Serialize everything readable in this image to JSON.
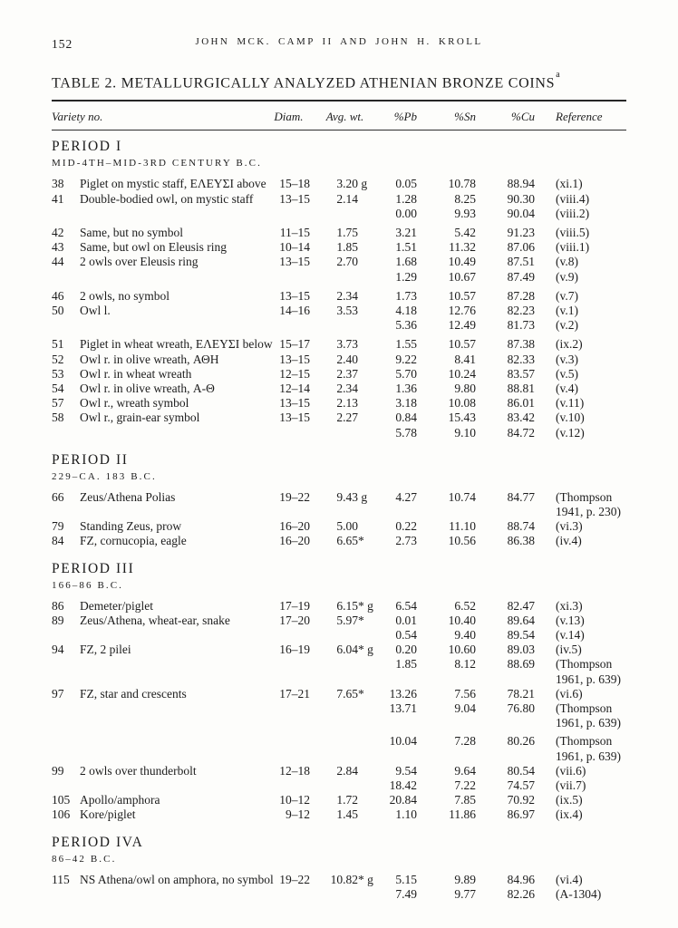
{
  "page": {
    "number": "152",
    "running_head": "JOHN MCK. CAMP II AND JOHN H. KROLL"
  },
  "table": {
    "title": "TABLE 2. METALLURGICALLY ANALYZED ATHENIAN BRONZE COINS",
    "footnote_marker": "a",
    "columns": {
      "variety": "Variety no.",
      "diam": "Diam.",
      "wt": "Avg. wt.",
      "pb": "%Pb",
      "sn": "%Sn",
      "cu": "%Cu",
      "ref": "Reference"
    },
    "sections": [
      {
        "period": "PERIOD I",
        "dates": "MID-4TH–MID-3RD CENTURY B.C.",
        "rows": [
          {
            "no": "38",
            "desc": "Piglet on mystic staff, ΕΛΕΥΣΙ above",
            "diam": "15–18",
            "wt": "3.20",
            "wts": " g",
            "lines": [
              {
                "pb": "0.05",
                "sn": "10.78",
                "cu": "88.94",
                "ref": "(xi.1)"
              }
            ]
          },
          {
            "no": "41",
            "desc": "Double-bodied owl, on mystic staff",
            "diam": "13–15",
            "wt": "2.14",
            "wts": "",
            "lines": [
              {
                "pb": "1.28",
                "sn": "8.25",
                "cu": "90.30",
                "ref": "(viii.4)"
              },
              {
                "pb": "0.00",
                "sn": "9.93",
                "cu": "90.04",
                "ref": "(viii.2)"
              }
            ]
          },
          {
            "no": "42",
            "gap": true,
            "desc": "Same, but no symbol",
            "diam": "11–15",
            "wt": "1.75",
            "wts": "",
            "lines": [
              {
                "pb": "3.21",
                "sn": "5.42",
                "cu": "91.23",
                "ref": "(viii.5)"
              }
            ]
          },
          {
            "no": "43",
            "desc": "Same, but owl on Eleusis ring",
            "diam": "10–14",
            "wt": "1.85",
            "wts": "",
            "lines": [
              {
                "pb": "1.51",
                "sn": "11.32",
                "cu": "87.06",
                "ref": "(viii.1)"
              }
            ]
          },
          {
            "no": "44",
            "desc": "2 owls over Eleusis ring",
            "diam": "13–15",
            "wt": "2.70",
            "wts": "",
            "lines": [
              {
                "pb": "1.68",
                "sn": "10.49",
                "cu": "87.51",
                "ref": "(v.8)"
              },
              {
                "pb": "1.29",
                "sn": "10.67",
                "cu": "87.49",
                "ref": "(v.9)"
              }
            ]
          },
          {
            "no": "46",
            "gap": true,
            "desc": "2 owls, no symbol",
            "diam": "13–15",
            "wt": "2.34",
            "wts": "",
            "lines": [
              {
                "pb": "1.73",
                "sn": "10.57",
                "cu": "87.28",
                "ref": "(v.7)"
              }
            ]
          },
          {
            "no": "50",
            "desc": "Owl l.",
            "diam": "14–16",
            "wt": "3.53",
            "wts": "",
            "lines": [
              {
                "pb": "4.18",
                "sn": "12.76",
                "cu": "82.23",
                "ref": "(v.1)"
              },
              {
                "pb": "5.36",
                "sn": "12.49",
                "cu": "81.73",
                "ref": "(v.2)"
              }
            ]
          },
          {
            "no": "51",
            "gap": true,
            "desc": "Piglet in wheat wreath, ΕΛΕΥΣΙ below",
            "diam": "15–17",
            "wt": "3.73",
            "wts": "",
            "lines": [
              {
                "pb": "1.55",
                "sn": "10.57",
                "cu": "87.38",
                "ref": "(ix.2)"
              }
            ]
          },
          {
            "no": "52",
            "desc": "Owl r. in olive wreath, ΑΘΗ",
            "diam": "13–15",
            "wt": "2.40",
            "wts": "",
            "lines": [
              {
                "pb": "9.22",
                "sn": "8.41",
                "cu": "82.33",
                "ref": "(v.3)"
              }
            ]
          },
          {
            "no": "53",
            "desc": "Owl r. in wheat wreath",
            "diam": "12–15",
            "wt": "2.37",
            "wts": "",
            "lines": [
              {
                "pb": "5.70",
                "sn": "10.24",
                "cu": "83.57",
                "ref": "(v.5)"
              }
            ]
          },
          {
            "no": "54",
            "desc": "Owl r. in olive wreath, Α-Θ",
            "diam": "12–14",
            "wt": "2.34",
            "wts": "",
            "lines": [
              {
                "pb": "1.36",
                "sn": "9.80",
                "cu": "88.81",
                "ref": "(v.4)"
              }
            ]
          },
          {
            "no": "57",
            "desc": "Owl r., wreath symbol",
            "diam": "13–15",
            "wt": "2.13",
            "wts": "",
            "lines": [
              {
                "pb": "3.18",
                "sn": "10.08",
                "cu": "86.01",
                "ref": "(v.11)"
              }
            ]
          },
          {
            "no": "58",
            "desc": "Owl r., grain-ear symbol",
            "diam": "13–15",
            "wt": "2.27",
            "wts": "",
            "lines": [
              {
                "pb": "0.84",
                "sn": "15.43",
                "cu": "83.42",
                "ref": "(v.10)"
              },
              {
                "pb": "5.78",
                "sn": "9.10",
                "cu": "84.72",
                "ref": "(v.12)"
              }
            ]
          }
        ]
      },
      {
        "period": "PERIOD II",
        "dates": "229–CA. 183 B.C.",
        "rows": [
          {
            "no": "66",
            "desc": "Zeus/Athena Polias",
            "diam": "19–22",
            "wt": "9.43",
            "wts": " g",
            "lines": [
              {
                "pb": "4.27",
                "sn": "10.74",
                "cu": "84.77",
                "ref": "(Thompson 1941, p. 230)"
              }
            ]
          },
          {
            "no": "79",
            "desc": "Standing Zeus, prow",
            "diam": "16–20",
            "wt": "5.00",
            "wts": "",
            "lines": [
              {
                "pb": "0.22",
                "sn": "11.10",
                "cu": "88.74",
                "ref": "(vi.3)"
              }
            ]
          },
          {
            "no": "84",
            "desc": "FZ, cornucopia, eagle",
            "diam": "16–20",
            "wt": "6.65",
            "wts": "*",
            "lines": [
              {
                "pb": "2.73",
                "sn": "10.56",
                "cu": "86.38",
                "ref": "(iv.4)"
              }
            ]
          }
        ]
      },
      {
        "period": "PERIOD III",
        "dates": "166–86 B.C.",
        "rows": [
          {
            "no": "86",
            "desc": "Demeter/piglet",
            "diam": "17–19",
            "wt": "6.15",
            "wts": "* g",
            "lines": [
              {
                "pb": "6.54",
                "sn": "6.52",
                "cu": "82.47",
                "ref": "(xi.3)"
              }
            ]
          },
          {
            "no": "89",
            "desc": "Zeus/Athena, wheat-ear, snake",
            "diam": "17–20",
            "wt": "5.97",
            "wts": "*",
            "lines": [
              {
                "pb": "0.01",
                "sn": "10.40",
                "cu": "89.64",
                "ref": "(v.13)"
              },
              {
                "pb": "0.54",
                "sn": "9.40",
                "cu": "89.54",
                "ref": "(v.14)"
              }
            ]
          },
          {
            "no": "94",
            "desc": "FZ, 2 pilei",
            "diam": "16–19",
            "wt": "6.04",
            "wts": "* g",
            "lines": [
              {
                "pb": "0.20",
                "sn": "10.60",
                "cu": "89.03",
                "ref": "(iv.5)"
              },
              {
                "pb": "1.85",
                "sn": "8.12",
                "cu": "88.69",
                "ref": "(Thompson 1961, p. 639)"
              }
            ]
          },
          {
            "no": "97",
            "desc": "FZ, star and crescents",
            "diam": "17–21",
            "wt": "7.65",
            "wts": "*",
            "lines": [
              {
                "pb": "13.26",
                "sn": "7.56",
                "cu": "78.21",
                "ref": "(vi.6)"
              },
              {
                "pb": "13.71",
                "sn": "9.04",
                "cu": "76.80",
                "ref": "(Thompson 1961, p. 639)"
              },
              {
                "gap": true,
                "pb": "10.04",
                "sn": "7.28",
                "cu": "80.26",
                "ref": "(Thompson 1961, p. 639)"
              }
            ]
          },
          {
            "no": "99",
            "desc": "2 owls over thunderbolt",
            "diam": "12–18",
            "wt": "2.84",
            "wts": "",
            "lines": [
              {
                "pb": "9.54",
                "sn": "9.64",
                "cu": "80.54",
                "ref": "(vii.6)"
              },
              {
                "pb": "18.42",
                "sn": "7.22",
                "cu": "74.57",
                "ref": "(vii.7)"
              }
            ]
          },
          {
            "no": "105",
            "desc": "Apollo/amphora",
            "diam": "10–12",
            "wt": "1.72",
            "wts": "",
            "lines": [
              {
                "pb": "20.84",
                "sn": "7.85",
                "cu": "70.92",
                "ref": "(ix.5)"
              }
            ]
          },
          {
            "no": "106",
            "desc": "Kore/piglet",
            "diam": "9–12",
            "wt": "1.45",
            "wts": "",
            "lines": [
              {
                "pb": "1.10",
                "sn": "11.86",
                "cu": "86.97",
                "ref": "(ix.4)"
              }
            ]
          }
        ]
      },
      {
        "period": "PERIOD IVA",
        "dates": "86–42 B.C.",
        "rows": [
          {
            "no": "115",
            "desc": "NS Athena/owl on amphora, no symbol",
            "diam": "19–22",
            "wt": "10.82",
            "wts": "* g",
            "lines": [
              {
                "pb": "5.15",
                "sn": "9.89",
                "cu": "84.96",
                "ref": "(vi.4)"
              },
              {
                "pb": "7.49",
                "sn": "9.77",
                "cu": "82.26",
                "ref": "(A-1304)"
              }
            ]
          }
        ]
      }
    ]
  }
}
